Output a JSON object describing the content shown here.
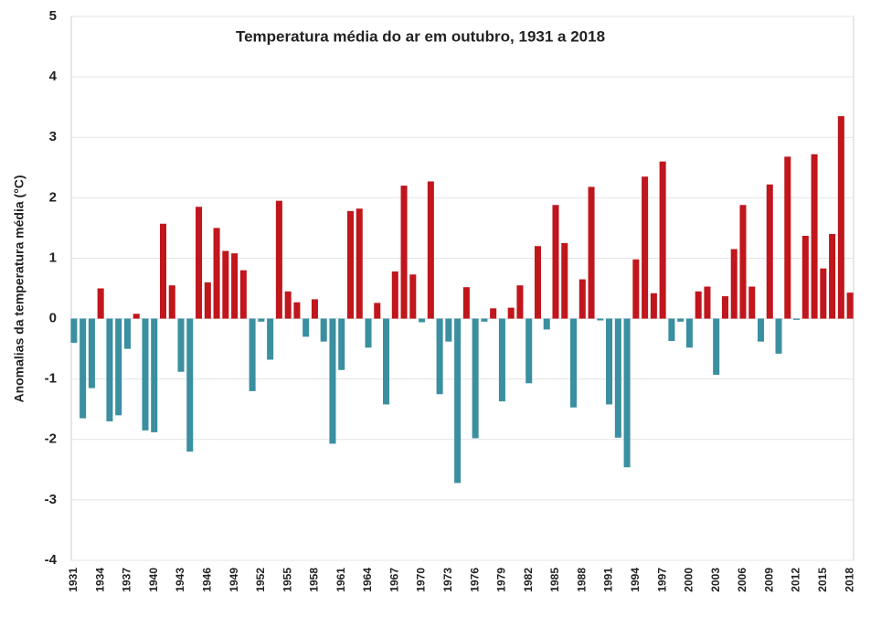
{
  "chart_data": {
    "type": "bar",
    "title": "Temperatura média do ar em outubro, 1931 a 2018",
    "y_label": "Anomalias da temperatura média (°C)",
    "categories": [
      "1931",
      null,
      null,
      "1934",
      null,
      null,
      "1937",
      null,
      null,
      "1940",
      null,
      null,
      "1943",
      null,
      null,
      "1946",
      null,
      null,
      "1949",
      null,
      null,
      "1952",
      null,
      null,
      "1955",
      null,
      null,
      "1958",
      null,
      null,
      "1961",
      null,
      null,
      "1964",
      null,
      null,
      "1967",
      null,
      null,
      "1970",
      null,
      null,
      "1973",
      null,
      null,
      "1976",
      null,
      null,
      "1979",
      null,
      null,
      "1982",
      null,
      null,
      "1985",
      null,
      null,
      "1988",
      null,
      null,
      "1991",
      null,
      null,
      "1994",
      null,
      null,
      "1997",
      null,
      null,
      "2000",
      null,
      null,
      "2003",
      null,
      null,
      "2006",
      null,
      null,
      "2009",
      null,
      null,
      "2012",
      null,
      null,
      "2015",
      null,
      null,
      "2018"
    ],
    "values": [
      -0.4,
      -1.65,
      -1.15,
      0.5,
      -1.7,
      -1.6,
      -0.5,
      0.08,
      -1.85,
      -1.88,
      1.57,
      0.55,
      -0.88,
      -2.2,
      1.85,
      0.6,
      1.5,
      1.12,
      1.08,
      0.8,
      -1.2,
      -0.05,
      -0.68,
      1.95,
      0.45,
      0.27,
      -0.3,
      0.32,
      -0.38,
      -2.07,
      -0.85,
      1.78,
      1.82,
      -0.48,
      0.26,
      -1.42,
      0.78,
      2.2,
      0.73,
      -0.06,
      2.27,
      -1.25,
      -0.38,
      -2.72,
      0.52,
      -1.98,
      -0.05,
      0.17,
      -1.37,
      0.18,
      0.55,
      -1.07,
      1.2,
      -0.18,
      1.88,
      1.25,
      -1.47,
      0.65,
      2.18,
      -0.03,
      -1.42,
      -1.97,
      -2.46,
      0.98,
      2.35,
      0.42,
      2.6,
      -0.37,
      -0.05,
      -0.48,
      0.45,
      0.53,
      -0.93,
      0.37,
      1.15,
      1.88,
      0.53,
      -0.38,
      2.22,
      -0.58,
      2.68,
      -0.02,
      1.37,
      2.72,
      0.83,
      1.4,
      3.35,
      0.43
    ],
    "positive_color": "#c0161c",
    "negative_color": "#3a8fa0",
    "ylim": [
      -4,
      5
    ],
    "yticks": [
      -4,
      -3,
      -2,
      -1,
      0,
      1,
      2,
      3,
      4,
      5
    ],
    "grid": true
  }
}
